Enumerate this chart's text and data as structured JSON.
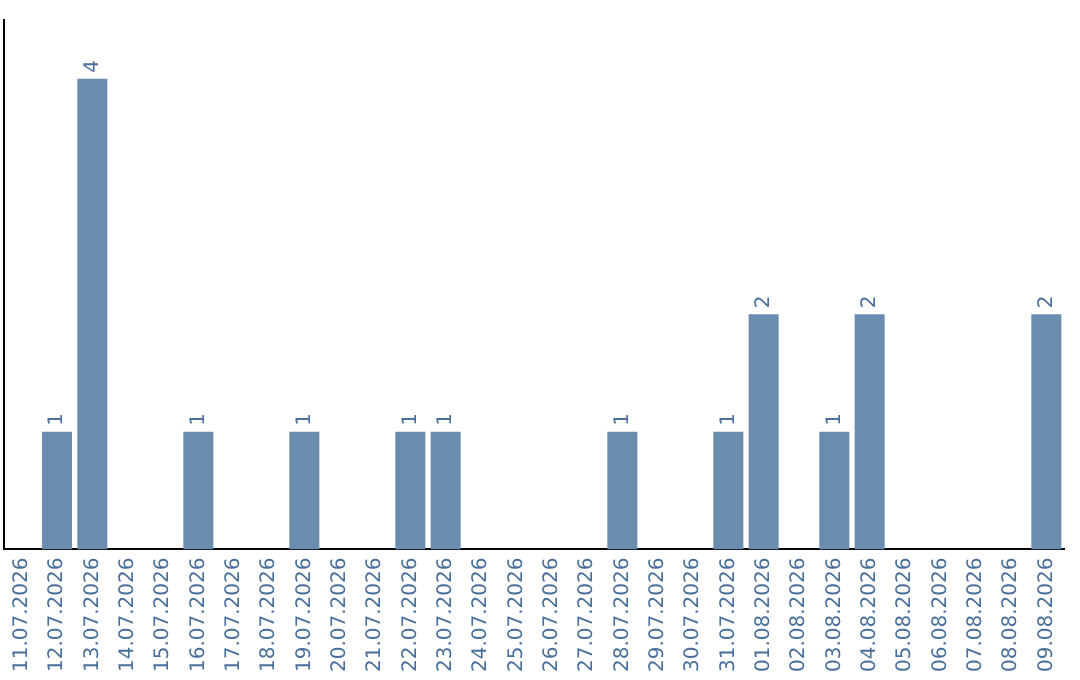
{
  "chart_data": {
    "type": "bar",
    "categories": [
      "11.07.2026",
      "12.07.2026",
      "13.07.2026",
      "14.07.2026",
      "15.07.2026",
      "16.07.2026",
      "17.07.2026",
      "18.07.2026",
      "19.07.2026",
      "20.07.2026",
      "21.07.2026",
      "22.07.2026",
      "23.07.2026",
      "24.07.2026",
      "25.07.2026",
      "26.07.2026",
      "27.07.2026",
      "28.07.2026",
      "29.07.2026",
      "30.07.2026",
      "31.07.2026",
      "01.08.2026",
      "02.08.2026",
      "03.08.2026",
      "04.08.2026",
      "05.08.2026",
      "06.08.2026",
      "07.08.2026",
      "08.08.2026",
      "09.08.2026"
    ],
    "values": [
      0,
      1,
      4,
      0,
      0,
      1,
      0,
      0,
      1,
      0,
      0,
      1,
      1,
      0,
      0,
      0,
      0,
      1,
      0,
      0,
      1,
      2,
      0,
      1,
      2,
      0,
      0,
      0,
      0,
      2
    ],
    "value_labels": [
      null,
      "1",
      "4",
      null,
      null,
      "1",
      null,
      null,
      "1",
      null,
      null,
      "1",
      "1",
      null,
      null,
      null,
      null,
      "1",
      null,
      null,
      "1",
      "2",
      null,
      "1",
      "2",
      null,
      null,
      null,
      null,
      "2"
    ],
    "color": "#6a8caf",
    "grid": false,
    "legend": false,
    "tick_labels": "x"
  }
}
